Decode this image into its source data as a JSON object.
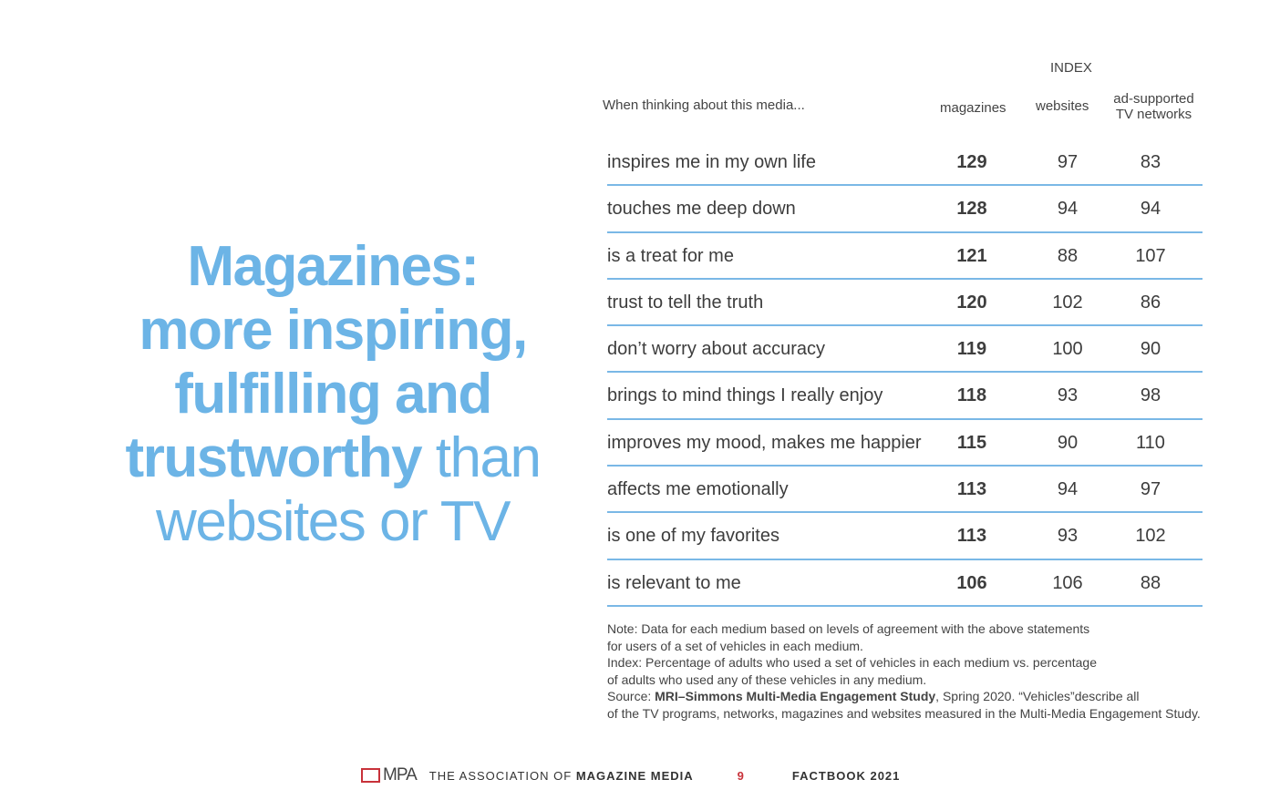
{
  "headline": {
    "line1": "Magazines:",
    "line2": "more inspiring,",
    "line3": "fulfilling and",
    "line4_bold": "trustworthy",
    "line4_rest": " than",
    "line5": "websites or TV"
  },
  "table": {
    "index_label": "INDEX",
    "row_header": "When thinking about this media...",
    "columns": [
      "magazines",
      "websites",
      "ad-supported",
      "TV networks"
    ],
    "rows": [
      {
        "label": "inspires me in my own life",
        "magazines": "129",
        "websites": "97",
        "tv": "83"
      },
      {
        "label": "touches me deep down",
        "magazines": "128",
        "websites": "94",
        "tv": "94"
      },
      {
        "label": "is a treat for me",
        "magazines": "121",
        "websites": "88",
        "tv": "107"
      },
      {
        "label": "trust to tell the truth",
        "magazines": "120",
        "websites": "102",
        "tv": "86"
      },
      {
        "label": "don’t worry about accuracy",
        "magazines": "119",
        "websites": "100",
        "tv": "90"
      },
      {
        "label": "brings to mind things I really enjoy",
        "magazines": "118",
        "websites": "93",
        "tv": "98"
      },
      {
        "label": "improves my mood, makes me happier",
        "magazines": "115",
        "websites": "90",
        "tv": "110"
      },
      {
        "label": "affects me emotionally",
        "magazines": "113",
        "websites": "94",
        "tv": "97"
      },
      {
        "label": "is one of my favorites",
        "magazines": "113",
        "websites": "93",
        "tv": "102"
      },
      {
        "label": "is relevant to me",
        "magazines": "106",
        "websites": "106",
        "tv": "88"
      }
    ]
  },
  "notes": {
    "l1": "Note: Data for each medium based on levels of agreement with the above statements",
    "l2": "for users of a set of vehicles in each medium.",
    "l3": "Index: Percentage of adults who used a set of vehicles in each  medium vs. percentage",
    "l4": "of adults who used any of these vehicles in any medium.",
    "l5a": "Source: ",
    "l5b": "MRI–Simmons Multi-Media Engagement Study",
    "l5c": ", Spring 2020. “Vehicles”describe all",
    "l6": "of the TV programs, networks, magazines and websites measured in the Multi-Media Engagement Study."
  },
  "footer": {
    "logo": "MPA",
    "tag_prefix": "THE ASSOCIATION OF ",
    "tag_bold": "MAGAZINE MEDIA",
    "page": "9",
    "book": "FACTBOOK 2021",
    "page_color": "#c8323a"
  },
  "colors": {
    "accent": "#6cb4e6",
    "rule": "#7ab8e6"
  }
}
